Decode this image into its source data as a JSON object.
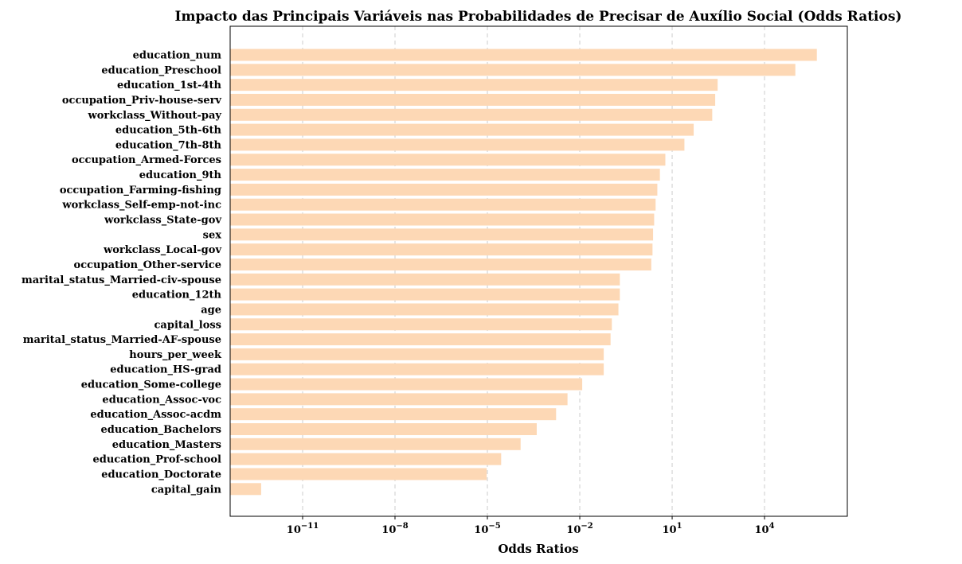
{
  "chart_data": {
    "type": "bar",
    "orientation": "horizontal",
    "title": "Impacto das Principais Variáveis nas Probabilidades de Precisar de Auxílio Social (Odds Ratios)",
    "xlabel": "Odds Ratios",
    "ylabel": "",
    "xscale": "log",
    "xlim": [
      1e-13,
      10000000.0
    ],
    "xticks": [
      {
        "value": 1e-11,
        "base": "10",
        "exp": "−11"
      },
      {
        "value": 1e-08,
        "base": "10",
        "exp": "−8"
      },
      {
        "value": 1e-05,
        "base": "10",
        "exp": "−5"
      },
      {
        "value": 0.01,
        "base": "10",
        "exp": "−2"
      },
      {
        "value": 10,
        "base": "10",
        "exp": "1"
      },
      {
        "value": 10000,
        "base": "10",
        "exp": "4"
      }
    ],
    "grid": "x-dashed",
    "bar_color": "#fdd8b5",
    "categories": [
      "education_num",
      "education_Preschool",
      "education_1st-4th",
      "occupation_Priv-house-serv",
      "workclass_Without-pay",
      "education_5th-6th",
      "education_7th-8th",
      "occupation_Armed-Forces",
      "education_9th",
      "occupation_Farming-fishing",
      "workclass_Self-emp-not-inc",
      "workclass_State-gov",
      "sex",
      "workclass_Local-gov",
      "occupation_Other-service",
      "marital_status_Married-civ-spouse",
      "education_12th",
      "age",
      "capital_loss",
      "marital_status_Married-AF-spouse",
      "hours_per_week",
      "education_HS-grad",
      "education_Some-college",
      "education_Assoc-voc",
      "education_Assoc-acdm",
      "education_Bachelors",
      "education_Masters",
      "education_Prof-school",
      "education_Doctorate",
      "capital_gain"
    ],
    "values": [
      500000,
      100000,
      300,
      250,
      200,
      50,
      25,
      6,
      4,
      3.3,
      2.9,
      2.6,
      2.4,
      2.3,
      2.1,
      0.2,
      0.2,
      0.18,
      0.11,
      0.1,
      0.06,
      0.06,
      0.012,
      0.004,
      0.0017,
      0.0004,
      0.00012,
      2.8e-05,
      9.5e-06,
      4.5e-13
    ]
  }
}
